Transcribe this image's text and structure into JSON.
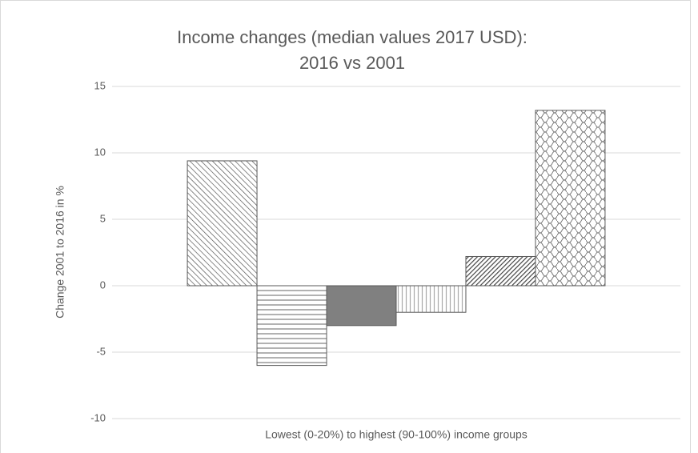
{
  "chart_data": {
    "type": "bar",
    "title": [
      "Income changes (median values 2017 USD):",
      "2016 vs 2001"
    ],
    "ylabel": "Change 2001  to 2016 in %",
    "xlabel": "Lowest (0-20%) to highest (90-100%) income groups",
    "categories": [
      null,
      null,
      null,
      null,
      null,
      null
    ],
    "values": [
      9.4,
      -6,
      -3,
      -2,
      2.2,
      13.2
    ],
    "patterns": [
      "back-diagonal",
      "horizontal",
      "solid",
      "vertical",
      "forward-diagonal",
      "weave"
    ],
    "color": "#595959",
    "ylim": [
      -10,
      15
    ],
    "yticks": [
      -10,
      -5,
      0,
      5,
      10,
      15
    ],
    "grid": true
  }
}
